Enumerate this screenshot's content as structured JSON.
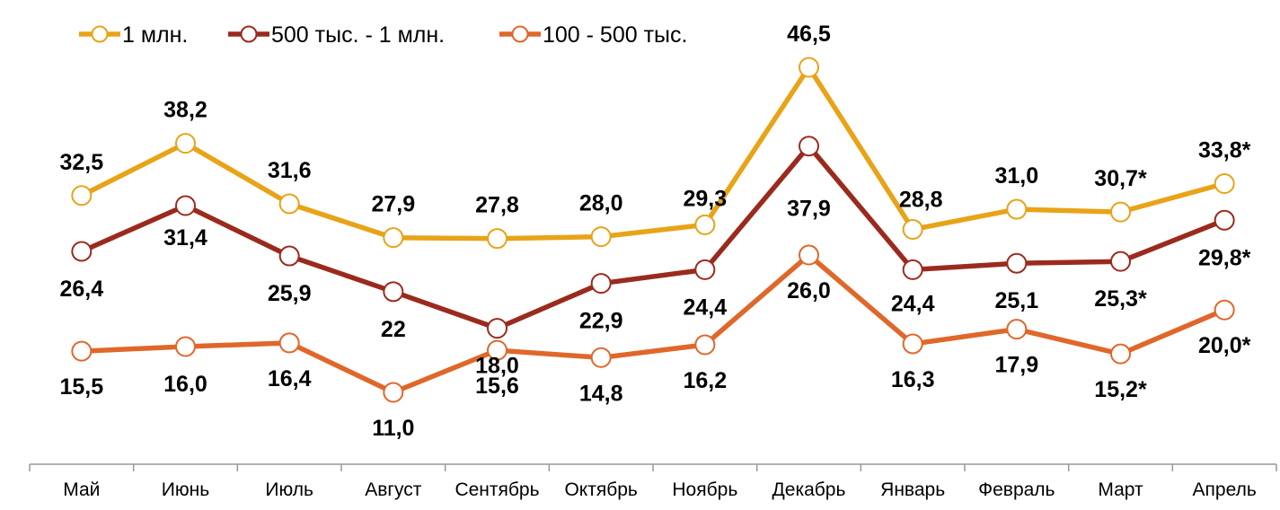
{
  "chart_data": {
    "type": "line",
    "title": "",
    "xlabel": "",
    "ylabel": "",
    "ylim": [
      10,
      50
    ],
    "grid": false,
    "legend_position": "top-left",
    "categories": [
      "Май",
      "Июнь",
      "Июль",
      "Август",
      "Сентябрь",
      "Октябрь",
      "Ноябрь",
      "Декабрь",
      "Январь",
      "Февраль",
      "Март",
      "Апрель"
    ],
    "series": [
      {
        "name": "1 млн.",
        "color": "#E8A317",
        "values": [
          32.5,
          38.2,
          31.6,
          27.9,
          27.8,
          28.0,
          29.3,
          46.5,
          28.8,
          31.0,
          30.7,
          33.8
        ],
        "labels": [
          "32,5",
          "38,2",
          "31,6",
          "27,9",
          "27,8",
          "28,0",
          "29,3",
          "46,5",
          "28,8",
          "31,0",
          "30,7*",
          "33,8*"
        ]
      },
      {
        "name": "500 тыс. - 1 млн.",
        "color": "#9B2A1E",
        "values": [
          26.4,
          31.4,
          25.9,
          22.0,
          18.0,
          22.9,
          24.4,
          37.9,
          24.4,
          25.1,
          25.3,
          29.8
        ],
        "labels": [
          "26,4",
          "31,4",
          "25,9",
          "22",
          "18,0",
          "22,9",
          "24,4",
          "37,9",
          "24,4",
          "25,1",
          "25,3*",
          "29,8*"
        ]
      },
      {
        "name": "100 - 500 тыс.",
        "color": "#E0672A",
        "values": [
          15.5,
          16.0,
          16.4,
          11.0,
          15.6,
          14.8,
          16.2,
          26.0,
          16.3,
          17.9,
          15.2,
          20.0
        ],
        "labels": [
          "15,5",
          "16,0",
          "16,4",
          "11,0",
          "15,6",
          "14,8",
          "16,2",
          "26,0",
          "16,3",
          "17,9",
          "15,2*",
          "20,0*"
        ]
      }
    ]
  }
}
